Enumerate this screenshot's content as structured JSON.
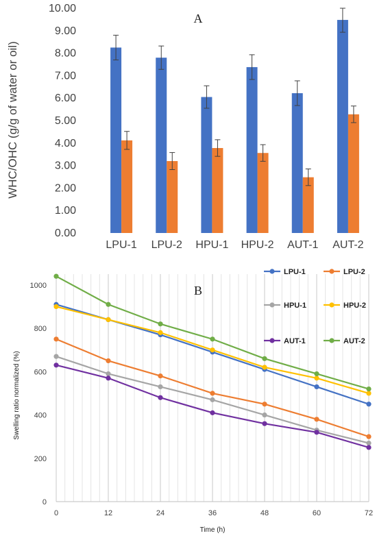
{
  "chart_data": [
    {
      "type": "bar",
      "panel_label": "A",
      "ylabel": "WHC/OHC  (g/g of water or oil)",
      "xlabel": "",
      "categories": [
        "LPU-1",
        "LPU-2",
        "HPU-1",
        "HPU-2",
        "AUT-1",
        "AUT-2"
      ],
      "ylim": [
        0,
        10
      ],
      "yticks": [
        "0.00",
        "1.00",
        "2.00",
        "3.00",
        "4.00",
        "5.00",
        "6.00",
        "7.00",
        "8.00",
        "9.00",
        "10.00"
      ],
      "grid": false,
      "legend": "none",
      "series": [
        {
          "color": "#4472c4",
          "values": [
            8.25,
            7.8,
            6.05,
            7.38,
            6.22,
            9.48
          ],
          "errors": [
            0.55,
            0.52,
            0.5,
            0.55,
            0.55,
            0.55
          ]
        },
        {
          "color": "#ed7d31",
          "values": [
            4.12,
            3.2,
            3.78,
            3.56,
            2.48,
            5.28
          ],
          "errors": [
            0.4,
            0.38,
            0.37,
            0.37,
            0.37,
            0.37
          ]
        }
      ]
    },
    {
      "type": "line",
      "panel_label": "B",
      "xlabel": "Time (h)",
      "ylabel": "Swelling ratio normalized (%)",
      "x": [
        0,
        12,
        24,
        36,
        48,
        60,
        72
      ],
      "xlim": [
        0,
        72
      ],
      "ylim": [
        0,
        1050
      ],
      "yticks": [
        0,
        200,
        400,
        600,
        800,
        1000
      ],
      "grid": "vertical minor lines",
      "legend": "top-right",
      "series": [
        {
          "name": "LPU-1",
          "color": "#4472c4",
          "values": [
            910,
            840,
            770,
            690,
            610,
            530,
            450
          ]
        },
        {
          "name": "LPU-2",
          "color": "#ed7d31",
          "values": [
            750,
            650,
            580,
            500,
            450,
            380,
            300
          ]
        },
        {
          "name": "HPU-1",
          "color": "#a5a5a5",
          "values": [
            670,
            590,
            530,
            470,
            400,
            330,
            270
          ]
        },
        {
          "name": "HPU-2",
          "color": "#ffc000",
          "values": [
            900,
            840,
            780,
            700,
            620,
            570,
            500
          ]
        },
        {
          "name": "AUT-1",
          "color": "#7030a0",
          "values": [
            630,
            570,
            480,
            410,
            360,
            320,
            250
          ]
        },
        {
          "name": "AUT-2",
          "color": "#70ad47",
          "values": [
            1040,
            910,
            820,
            750,
            660,
            590,
            520
          ]
        }
      ]
    }
  ]
}
